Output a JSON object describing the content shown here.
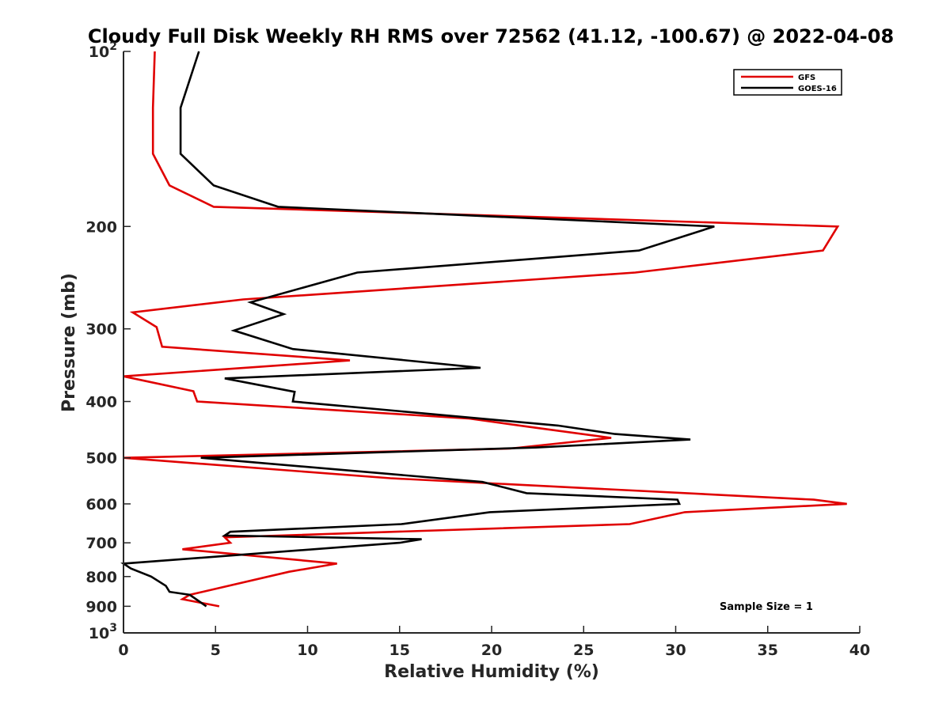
{
  "chart_data": {
    "type": "line",
    "title": "Cloudy Full Disk Weekly RH RMS over 72562 (41.12, -100.67) @ 2022-04-08",
    "xlabel": "Relative Humidity (%)",
    "ylabel": "Pressure (mb)",
    "xlim": [
      0,
      40
    ],
    "ylim": [
      100,
      1000
    ],
    "y_scale": "log",
    "y_reversed": true,
    "x_ticks": [
      "0",
      "5",
      "10",
      "15",
      "20",
      "25",
      "30",
      "35",
      "40"
    ],
    "y_ticks": [
      {
        "value": 100,
        "base": "10",
        "exp": "2"
      },
      {
        "value": 200,
        "label": "200"
      },
      {
        "value": 300,
        "label": "300"
      },
      {
        "value": 400,
        "label": "400"
      },
      {
        "value": 500,
        "label": "500"
      },
      {
        "value": 600,
        "label": "600"
      },
      {
        "value": 700,
        "label": "700"
      },
      {
        "value": 800,
        "label": "800"
      },
      {
        "value": 900,
        "label": "900"
      },
      {
        "value": 1000,
        "base": "10",
        "exp": "3"
      }
    ],
    "legend_position": "top-right",
    "grid": false,
    "annotation": "Sample Size = 1",
    "series": [
      {
        "name": "GFS",
        "color": "#e00000",
        "points": [
          [
            1.7,
            100
          ],
          [
            1.6,
            125
          ],
          [
            1.6,
            150
          ],
          [
            2.5,
            170
          ],
          [
            4.9,
            185
          ],
          [
            38.8,
            200
          ],
          [
            38.0,
            220
          ],
          [
            27.8,
            240
          ],
          [
            6.5,
            267
          ],
          [
            0.5,
            281
          ],
          [
            1.8,
            298
          ],
          [
            2.1,
            322
          ],
          [
            12.3,
            340
          ],
          [
            0.0,
            362
          ],
          [
            3.8,
            384
          ],
          [
            4.0,
            400
          ],
          [
            18.8,
            428
          ],
          [
            22.0,
            442
          ],
          [
            26.5,
            462
          ],
          [
            21.0,
            482
          ],
          [
            0.0,
            500
          ],
          [
            14.5,
            542
          ],
          [
            37.5,
            590
          ],
          [
            39.3,
            600
          ],
          [
            30.5,
            620
          ],
          [
            27.5,
            650
          ],
          [
            5.5,
            685
          ],
          [
            5.8,
            700
          ],
          [
            3.2,
            718
          ],
          [
            11.6,
            760
          ],
          [
            9.0,
            785
          ],
          [
            3.6,
            860
          ],
          [
            3.2,
            875
          ],
          [
            5.2,
            900
          ]
        ]
      },
      {
        "name": "GOES-16",
        "color": "#000000",
        "points": [
          [
            4.1,
            100
          ],
          [
            3.1,
            125
          ],
          [
            3.1,
            150
          ],
          [
            4.9,
            170
          ],
          [
            8.4,
            185
          ],
          [
            32.1,
            200
          ],
          [
            28.0,
            220
          ],
          [
            12.7,
            240
          ],
          [
            6.9,
            270
          ],
          [
            8.7,
            283
          ],
          [
            6.0,
            302
          ],
          [
            9.2,
            325
          ],
          [
            19.4,
            350
          ],
          [
            5.5,
            365
          ],
          [
            9.3,
            385
          ],
          [
            9.2,
            400
          ],
          [
            23.6,
            440
          ],
          [
            26.7,
            455
          ],
          [
            30.8,
            465
          ],
          [
            22.4,
            480
          ],
          [
            4.2,
            500
          ],
          [
            19.5,
            550
          ],
          [
            21.9,
            575
          ],
          [
            30.1,
            590
          ],
          [
            30.2,
            600
          ],
          [
            19.9,
            620
          ],
          [
            15.1,
            650
          ],
          [
            5.8,
            670
          ],
          [
            5.5,
            680
          ],
          [
            16.2,
            690
          ],
          [
            15.0,
            700
          ],
          [
            0.0,
            760
          ],
          [
            0.4,
            775
          ],
          [
            1.5,
            800
          ],
          [
            2.3,
            830
          ],
          [
            2.5,
            850
          ],
          [
            3.6,
            860
          ],
          [
            4.5,
            900
          ]
        ]
      }
    ]
  }
}
